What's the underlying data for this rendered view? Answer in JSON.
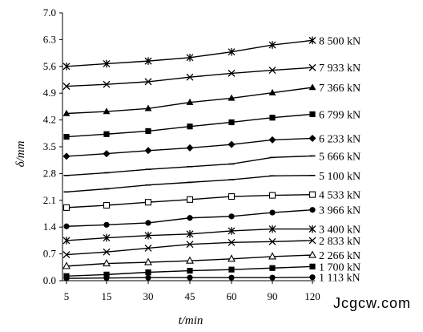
{
  "chart_data": {
    "type": "line",
    "x": [
      "5",
      "15",
      "30",
      "45",
      "60",
      "90",
      "120"
    ],
    "xlabel": "t/min",
    "ylabel": "δ/mm",
    "ylim": [
      0.0,
      7.0
    ],
    "yticks": [
      "0.0",
      "0.7",
      "1.4",
      "2.1",
      "2.8",
      "3.5",
      "4.2",
      "4.9",
      "5.6",
      "6.3",
      "7.0"
    ],
    "grid": false,
    "legend": "series labels at line ends (right)",
    "series": [
      {
        "name": "1 113 kN",
        "marker": "circle",
        "values": [
          0.06,
          0.07,
          0.08,
          0.08,
          0.08,
          0.08,
          0.09
        ]
      },
      {
        "name": "1 700 kN",
        "marker": "square",
        "values": [
          0.12,
          0.16,
          0.22,
          0.26,
          0.29,
          0.33,
          0.37
        ]
      },
      {
        "name": "2 266 kN",
        "marker": "triangle-open",
        "values": [
          0.38,
          0.45,
          0.48,
          0.52,
          0.57,
          0.63,
          0.67
        ]
      },
      {
        "name": "2 833 kN",
        "marker": "x",
        "values": [
          0.68,
          0.75,
          0.85,
          0.95,
          1.0,
          1.02,
          1.05
        ]
      },
      {
        "name": "3 400 kN",
        "marker": "asterisk",
        "values": [
          1.05,
          1.12,
          1.18,
          1.22,
          1.3,
          1.35,
          1.35
        ]
      },
      {
        "name": "3 966 kN",
        "marker": "circle",
        "values": [
          1.42,
          1.46,
          1.51,
          1.64,
          1.68,
          1.78,
          1.85
        ]
      },
      {
        "name": "4 533 kN",
        "marker": "square-open",
        "values": [
          1.91,
          1.97,
          2.05,
          2.12,
          2.2,
          2.23,
          2.25
        ]
      },
      {
        "name": "5 100 kN",
        "marker": "dash",
        "values": [
          2.32,
          2.4,
          2.5,
          2.57,
          2.64,
          2.74,
          2.75
        ]
      },
      {
        "name": "5 666 kN",
        "marker": "dash",
        "values": [
          2.75,
          2.82,
          2.91,
          2.98,
          3.05,
          3.22,
          3.26
        ]
      },
      {
        "name": "6 233 kN",
        "marker": "diamond",
        "values": [
          3.25,
          3.32,
          3.4,
          3.47,
          3.56,
          3.68,
          3.72
        ]
      },
      {
        "name": "6 799 kN",
        "marker": "square",
        "values": [
          3.76,
          3.83,
          3.91,
          4.03,
          4.14,
          4.26,
          4.35
        ]
      },
      {
        "name": "7 366 kN",
        "marker": "triangle",
        "values": [
          4.37,
          4.42,
          4.5,
          4.66,
          4.77,
          4.91,
          5.05
        ]
      },
      {
        "name": "7 933 kN",
        "marker": "x",
        "values": [
          5.08,
          5.13,
          5.2,
          5.32,
          5.42,
          5.5,
          5.57
        ]
      },
      {
        "name": "8 500 kN",
        "marker": "asterisk",
        "values": [
          5.6,
          5.67,
          5.74,
          5.83,
          5.98,
          6.16,
          6.28
        ]
      }
    ]
  },
  "watermark": "Jcgcw.com"
}
